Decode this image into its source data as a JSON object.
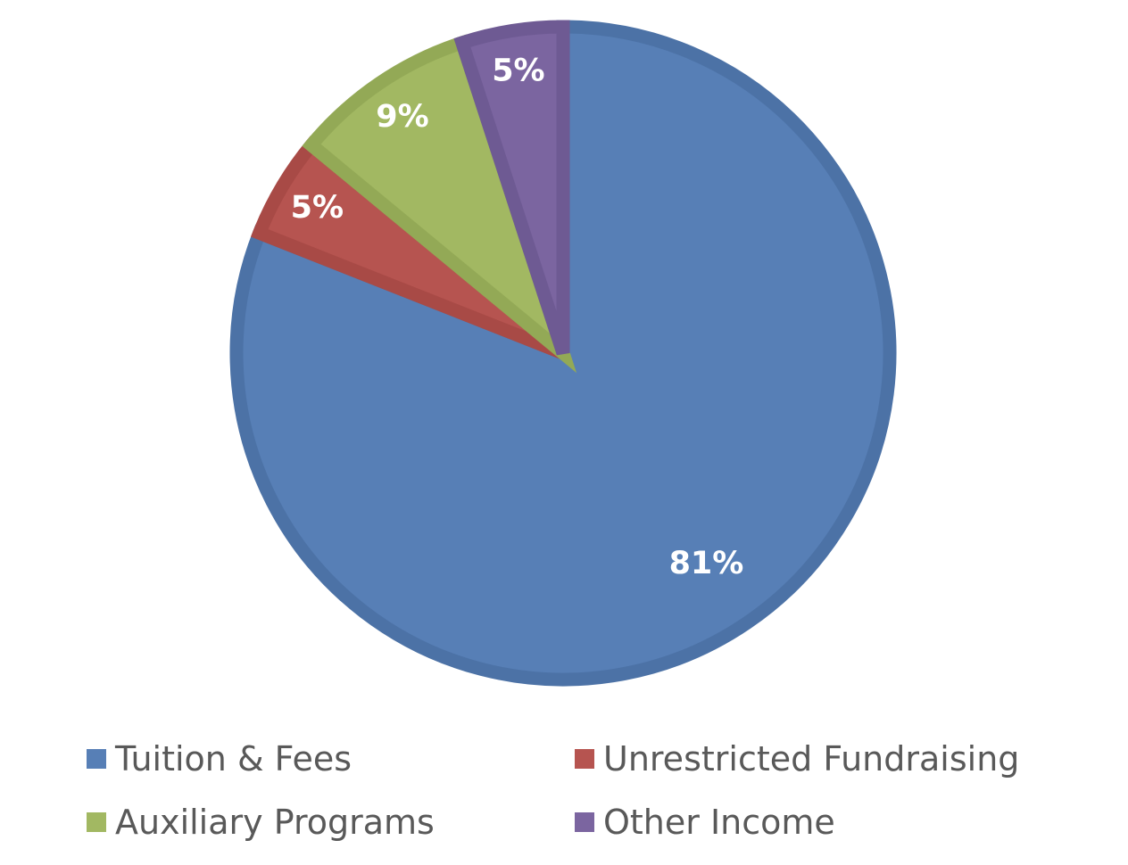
{
  "chart_data": {
    "type": "pie",
    "categories": [
      "Tuition & Fees",
      "Unrestricted Fundraising",
      "Auxiliary Programs",
      "Other Income"
    ],
    "values": [
      81,
      5,
      9,
      5
    ],
    "data_labels": [
      "81%",
      "5%",
      "9%",
      "5%"
    ],
    "colors": [
      "#577FB6",
      "#B65450",
      "#A2B862",
      "#7B65A0"
    ],
    "stroke_colors": [
      "#4C72A6",
      "#A84A46",
      "#93A956",
      "#6E5A93"
    ],
    "title": "",
    "legend_placement": "bottom",
    "start_angle": "12 o'clock",
    "direction": "clockwise"
  }
}
